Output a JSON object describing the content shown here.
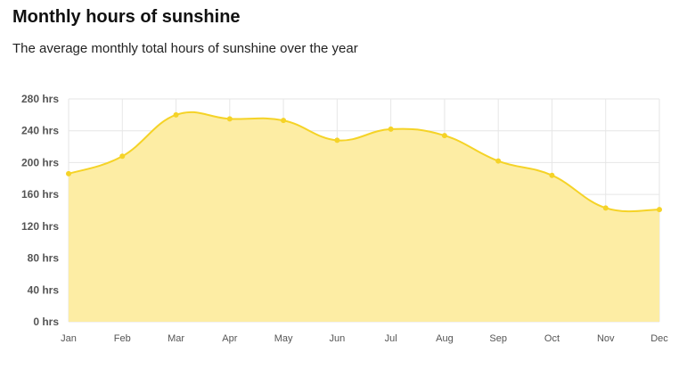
{
  "title": "Monthly hours of sunshine",
  "subtitle": "The average monthly total hours of sunshine over the year",
  "chart_data": {
    "type": "area",
    "title": "Monthly hours of sunshine",
    "subtitle": "The average monthly total hours of sunshine over the year",
    "categories": [
      "Jan",
      "Feb",
      "Mar",
      "Apr",
      "May",
      "Jun",
      "Jul",
      "Aug",
      "Sep",
      "Oct",
      "Nov",
      "Dec"
    ],
    "values": [
      186,
      208,
      260,
      255,
      253,
      228,
      242,
      234,
      202,
      184,
      143,
      141
    ],
    "ylim": [
      0,
      280
    ],
    "yticks": [
      0,
      40,
      80,
      120,
      160,
      200,
      240,
      280
    ],
    "ytick_labels": [
      "0 hrs",
      "40 hrs",
      "80 hrs",
      "120 hrs",
      "160 hrs",
      "200 hrs",
      "240 hrs",
      "280 hrs"
    ],
    "xlabel": "",
    "ylabel": "",
    "grid": true,
    "smooth": true,
    "line_color": "#f5d327",
    "fill_color": "#fdeda4",
    "grid_color": "#e6e6e6"
  }
}
